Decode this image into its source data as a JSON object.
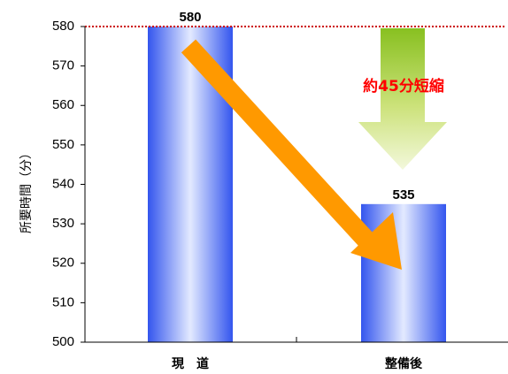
{
  "chart_data": {
    "type": "bar",
    "categories": [
      "現　道",
      "整備後"
    ],
    "values": [
      580,
      535
    ],
    "ylabel": "所要時間（分）",
    "ylim": [
      500,
      580
    ],
    "yticks": [
      500,
      510,
      520,
      530,
      540,
      550,
      560,
      570,
      580
    ],
    "data_labels": [
      "580",
      "535"
    ],
    "reference_line": {
      "value": 580,
      "color": "#cc0000",
      "style": "dotted"
    },
    "annotation": {
      "text": "約45分短縮",
      "color": "#ff0000"
    },
    "grid": false,
    "legend": "none",
    "colors": {
      "bar_edge": "#3355ee",
      "bar_center": "#e0e8ff",
      "arrow_orange": "#ff9900",
      "arrow_green": "#99cc33"
    }
  }
}
